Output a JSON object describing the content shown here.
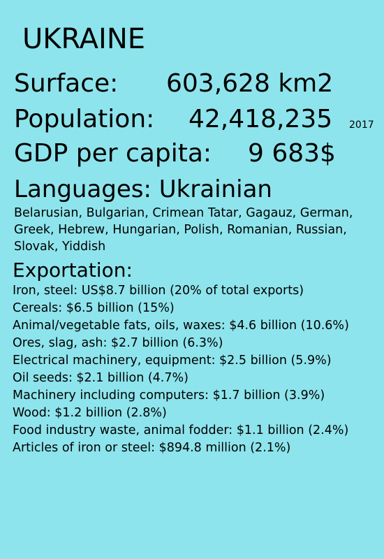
{
  "country": {
    "name": "UKRAINE"
  },
  "stats": {
    "surface_label": "Surface:",
    "surface_value": "603,628 km2",
    "population_label": "Population:",
    "population_value": "42,418,235",
    "population_year": "2017",
    "gdp_label": "GDP per capita:",
    "gdp_value": "9 683$"
  },
  "languages": {
    "heading": "Languages: Ukrainian",
    "others": "Belarusian, Bulgarian, Crimean Tatar, Gagauz, German, Greek, Hebrew, Hungarian, Polish, Romanian, Russian, Slovak, Yiddish"
  },
  "exportation": {
    "heading": "Exportation:",
    "items": [
      "Iron, steel: US$8.7 billion (20% of total exports)",
      "Cereals: $6.5 billion (15%)",
      "Animal/vegetable fats, oils, waxes: $4.6 billion (10.6%)",
      "Ores, slag, ash: $2.7 billion (6.3%)",
      "Electrical machinery, equipment: $2.5 billion (5.9%)",
      "Oil seeds: $2.1 billion (4.7%)",
      "Machinery including computers: $1.7 billion (3.9%)",
      "Wood: $1.2 billion (2.8%)",
      "Food industry waste, animal fodder: $1.1 billion (2.4%)",
      "Articles of iron or steel: $894.8 million (2.1%)"
    ]
  }
}
